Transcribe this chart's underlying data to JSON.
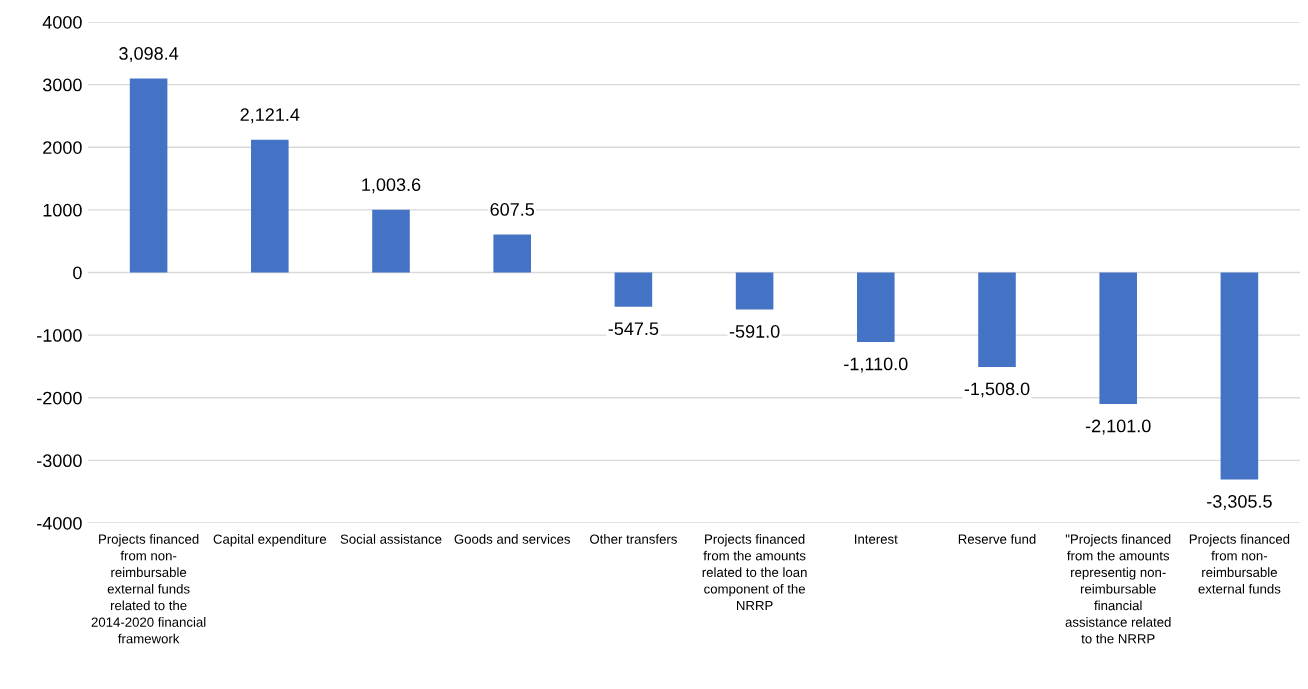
{
  "chart_data": {
    "type": "bar",
    "categories": [
      "Projects financed from non-reimbursable external funds related to the 2014-2020 financial framework",
      "Capital expenditure",
      "Social assistance",
      "Goods and services",
      "Other transfers",
      "Projects financed from the amounts related to the loan component of the NRRP",
      "Interest",
      "Reserve fund",
      "\"Projects financed from the amounts representig non-reimbursable financial assistance related to the NRRP",
      "Projects financed from non-reimbursable external funds"
    ],
    "values": [
      3098.4,
      2121.4,
      1003.6,
      607.5,
      -547.5,
      -591.0,
      -1110.0,
      -1508.0,
      -2101.0,
      -3305.5
    ],
    "value_labels": [
      "3,098.4",
      "2,121.4",
      "1,003.6",
      "607.5",
      "-547.5",
      "-591.0",
      "-1,110.0",
      "-1,508.0",
      "-2,101.0",
      "-3,305.5"
    ],
    "color": "#4472c4",
    "ylim": [
      -4000,
      4000
    ],
    "yticks": [
      -4000,
      -3000,
      -2000,
      -1000,
      0,
      1000,
      2000,
      3000,
      4000
    ],
    "grid": "y"
  }
}
